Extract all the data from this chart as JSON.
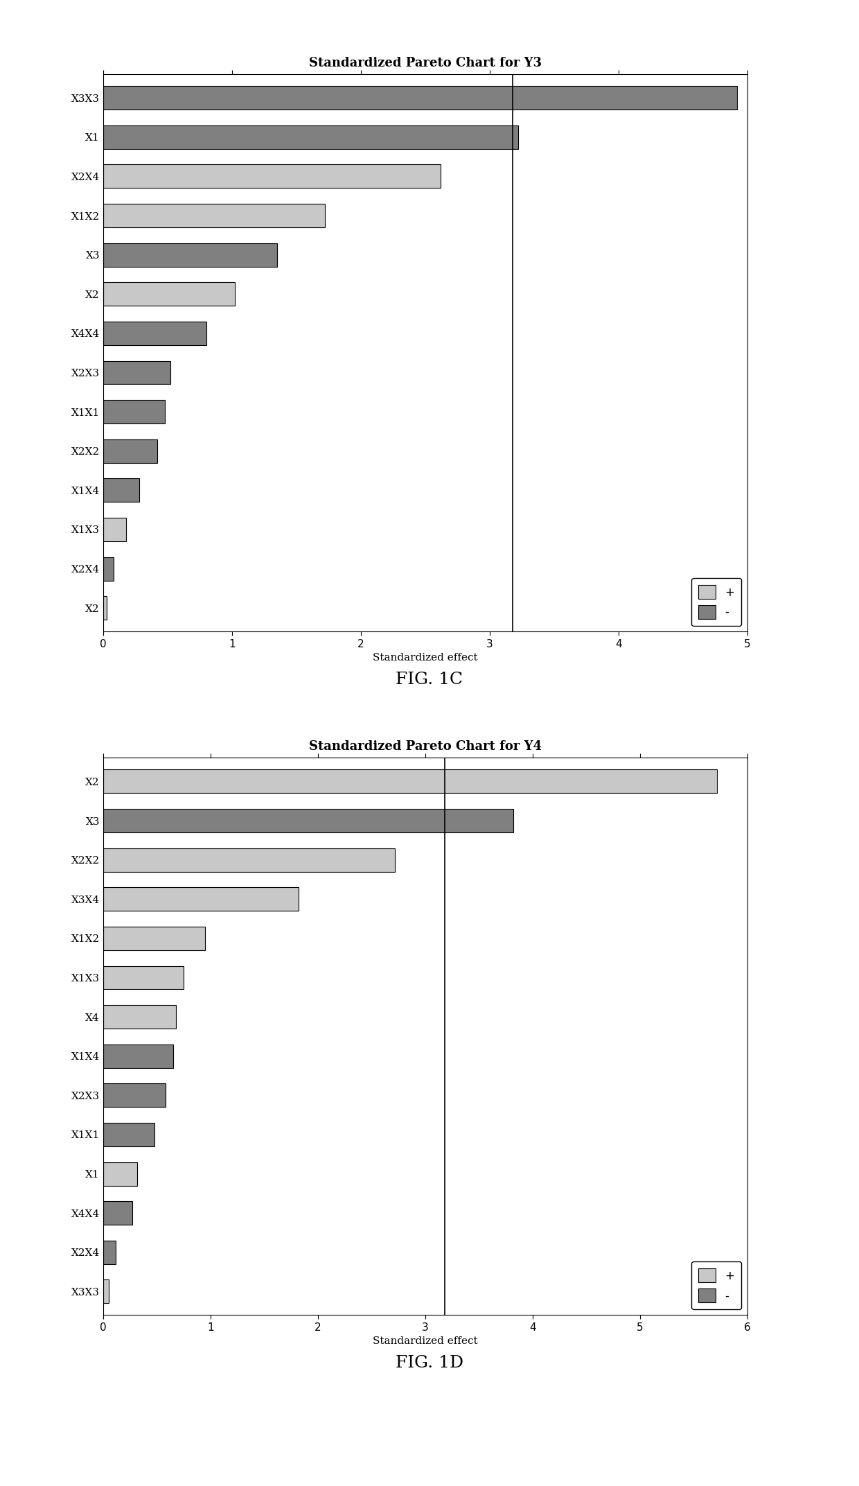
{
  "chart1": {
    "title": "Standardized Pareto Chart for Y3",
    "xlabel": "Standardized effect",
    "labels": [
      "X3X3",
      "X1",
      "X2X4",
      "X1X2",
      "X3",
      "X2",
      "X4X4",
      "X2X3",
      "X1X1",
      "X2X2",
      "X1X4",
      "X1X3",
      "X2X4",
      "X2"
    ],
    "values": [
      4.92,
      3.22,
      2.62,
      1.72,
      1.35,
      1.02,
      0.8,
      0.52,
      0.48,
      0.42,
      0.28,
      0.18,
      0.08,
      0.03
    ],
    "signs": [
      "-",
      "-",
      "+",
      "+",
      "-",
      "+",
      "-",
      "-",
      "-",
      "-",
      "-",
      "+",
      "-",
      "+"
    ],
    "ref_line": 3.18,
    "xlim": [
      0,
      5
    ],
    "xticks": [
      0,
      1,
      2,
      3,
      4,
      5
    ],
    "color_pos": "#c8c8c8",
    "color_neg": "#808080",
    "bg_color": "#ffffff",
    "fig_label": "FIG. 1C"
  },
  "chart2": {
    "title": "Standardized Pareto Chart for Y4",
    "xlabel": "Standardized effect",
    "labels": [
      "X2",
      "X3",
      "X2X2",
      "X3X4",
      "X1X2",
      "X1X3",
      "X4",
      "X1X4",
      "X2X3",
      "X1X1",
      "X1",
      "X4X4",
      "X2X4",
      "X3X3"
    ],
    "values": [
      5.72,
      3.82,
      2.72,
      1.82,
      0.95,
      0.75,
      0.68,
      0.65,
      0.58,
      0.48,
      0.32,
      0.27,
      0.12,
      0.05
    ],
    "signs": [
      "+",
      "-",
      "+",
      "+",
      "+",
      "+",
      "+",
      "-",
      "-",
      "-",
      "+",
      "-",
      "-",
      "+"
    ],
    "ref_line": 3.18,
    "xlim": [
      0,
      6
    ],
    "xticks": [
      0,
      1,
      2,
      3,
      4,
      5,
      6
    ],
    "color_pos": "#c8c8c8",
    "color_neg": "#808080",
    "bg_color": "#ffffff",
    "fig_label": "FIG. 1D"
  },
  "figsize": [
    12.4,
    21.44
  ],
  "dpi": 100,
  "title_fontsize": 13,
  "label_fontsize": 11,
  "tick_fontsize": 11,
  "legend_fontsize": 12,
  "bar_height": 0.6,
  "fig_label_fontsize": 18
}
